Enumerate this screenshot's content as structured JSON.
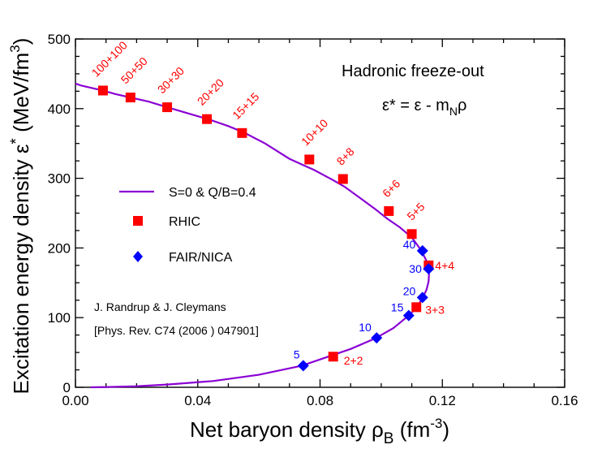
{
  "chart_data": {
    "type": "line",
    "xlabel": {
      "main": "Net baryon density ρ",
      "sub": "B",
      "unit_open": " (fm",
      "unit_exp": "-3",
      "unit_close": ")"
    },
    "ylabel": {
      "main": "Excitation energy density ε",
      "star": "*",
      "unit_open": " (MeV/fm",
      "unit_exp": "3",
      "unit_close": ")"
    },
    "xlim": [
      0.0,
      0.16
    ],
    "ylim": [
      0,
      500
    ],
    "xticks": [
      0.0,
      0.04,
      0.08,
      0.12,
      0.16
    ],
    "xtick_labels": [
      "0.00",
      "0.04",
      "0.08",
      "0.12",
      "0.16"
    ],
    "yticks": [
      0,
      100,
      200,
      300,
      400,
      500
    ],
    "ytick_labels": [
      "0",
      "100",
      "200",
      "300",
      "400",
      "500"
    ],
    "grid": false,
    "legend_placement": "center-left",
    "colors": {
      "curve": "#8a00d4",
      "rhic": "#ff0000",
      "fair": "#0000ff",
      "axis": "#000000"
    },
    "annotations": {
      "title": "Hadronic freeze-out",
      "formula": {
        "lhs": "ε* =  ε - m",
        "sub": "N",
        "rhs": "ρ"
      },
      "reference_line1": "J. Randrup & J. Cleymans",
      "reference_line2": "[Phys. Rev. C74 (2006 ) 047901]"
    },
    "series": [
      {
        "name": "S=0 & Q/B=0.4",
        "kind": "line",
        "x": [
          0.0,
          0.002,
          0.005,
          0.009,
          0.013,
          0.018,
          0.024,
          0.03,
          0.037,
          0.044,
          0.05,
          0.055,
          0.062,
          0.07,
          0.078,
          0.084,
          0.088,
          0.093,
          0.098,
          0.102,
          0.106,
          0.11,
          0.113,
          0.115,
          0.1157,
          0.1155,
          0.1148,
          0.1135,
          0.1115,
          0.109,
          0.104,
          0.098,
          0.09,
          0.08,
          0.074,
          0.06,
          0.045,
          0.03,
          0.02,
          0.01,
          0.005
        ],
        "y": [
          436,
          433,
          430,
          426,
          421,
          416,
          410,
          402,
          393,
          384,
          375,
          366,
          350,
          328,
          312,
          298,
          288,
          272,
          256,
          242,
          230,
          215,
          197,
          180,
          168,
          152,
          140,
          128,
          114,
          103,
          85,
          70,
          55,
          40,
          31,
          18,
          9,
          4,
          1.5,
          0.3,
          0
        ]
      },
      {
        "name": "RHIC",
        "kind": "marker",
        "shape": "square",
        "x": [
          0.009,
          0.018,
          0.03,
          0.043,
          0.0545,
          0.0765,
          0.0875,
          0.1025,
          0.11,
          0.1155,
          0.1115,
          0.0843
        ],
        "y": [
          426,
          416,
          402,
          385,
          365,
          327,
          299,
          253,
          220,
          175,
          115,
          44
        ],
        "labels": [
          "100+100",
          "50+50",
          "30+30",
          "20+20",
          "15+15",
          "10+10",
          "8+8",
          "6+6",
          "5+5",
          "4+4",
          "3+3",
          "2+2"
        ]
      },
      {
        "name": "FAIR/NICA",
        "kind": "marker",
        "shape": "diamond",
        "x": [
          0.1135,
          0.1155,
          0.1135,
          0.109,
          0.0985,
          0.0745
        ],
        "y": [
          196,
          170,
          129,
          103,
          71,
          31
        ],
        "labels": [
          "40",
          "30",
          "20",
          "15",
          "10",
          "5"
        ]
      }
    ]
  }
}
